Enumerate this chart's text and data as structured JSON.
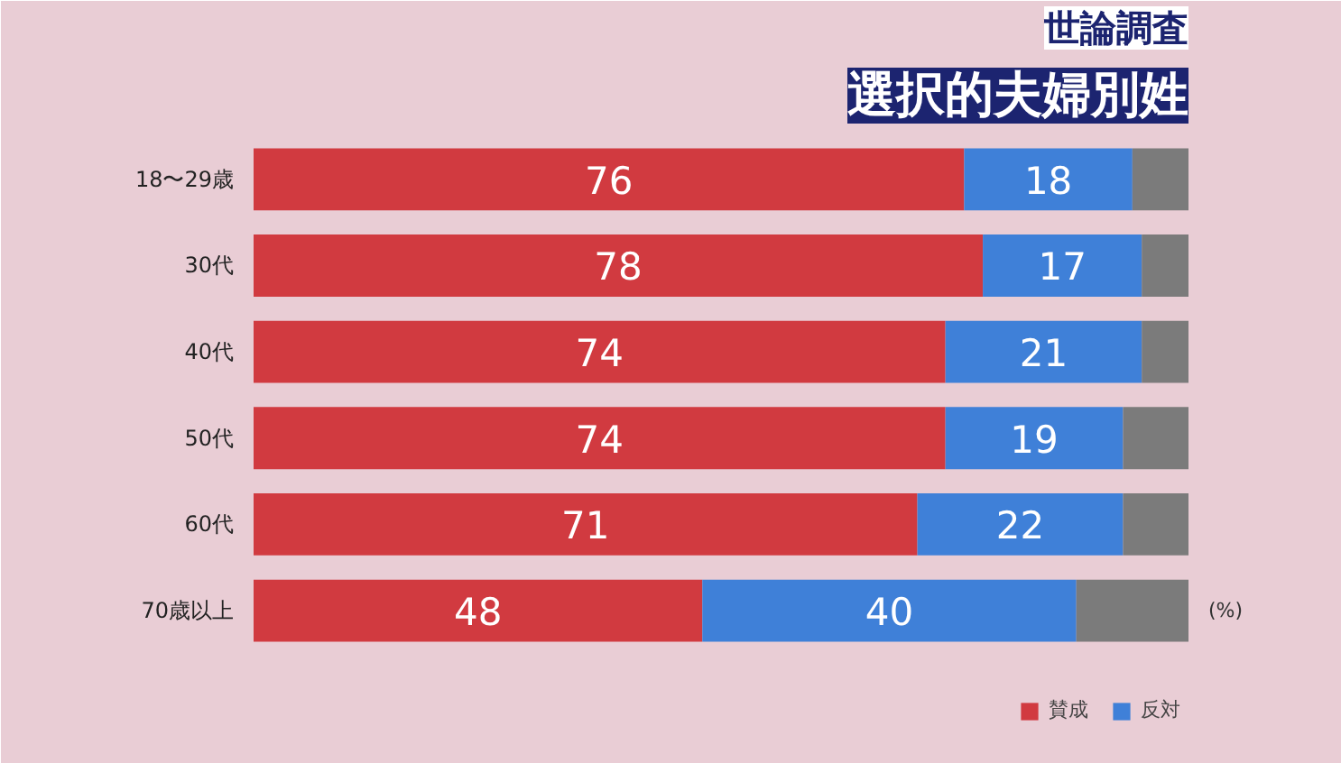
{
  "chart_data": {
    "type": "bar",
    "orientation": "horizontal",
    "stacked": true,
    "title": "選択的夫婦別姓",
    "subtitle": "世論調査",
    "categories": [
      "18〜29歳",
      "30代",
      "40代",
      "50代",
      "60代",
      "70歳以上"
    ],
    "xlim": [
      0,
      100
    ],
    "tick_labels": "y",
    "series": [
      {
        "name": "賛成",
        "color": "#d13a40",
        "values": [
          76,
          78,
          74,
          74,
          71,
          48
        ],
        "value_labels": [
          "76",
          "78",
          "74",
          "74",
          "71",
          "48"
        ]
      },
      {
        "name": "反対",
        "color": "#3f80d8",
        "values": [
          18,
          17,
          21,
          19,
          22,
          40
        ],
        "value_labels": [
          "18",
          "17",
          "21",
          "19",
          "22",
          "40"
        ]
      },
      {
        "color": "#7b7b7b",
        "values": [
          6,
          5,
          5,
          7,
          7,
          12
        ]
      }
    ],
    "annotations": [
      "(%)"
    ],
    "legend": "bottom right"
  }
}
